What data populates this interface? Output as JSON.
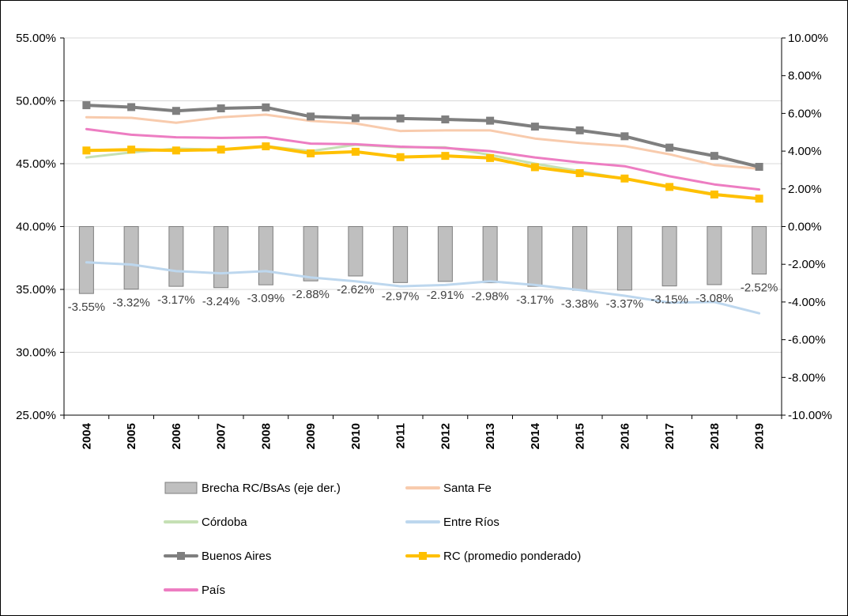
{
  "chart_data": {
    "type": "bar+line",
    "categories": [
      "2004",
      "2005",
      "2006",
      "2007",
      "2008",
      "2009",
      "2010",
      "2011",
      "2012",
      "2013",
      "2014",
      "2015",
      "2016",
      "2017",
      "2018",
      "2019"
    ],
    "left_axis": {
      "range": [
        0.25,
        0.55
      ],
      "ticks": [
        0.25,
        0.3,
        0.35,
        0.4,
        0.45,
        0.5,
        0.55
      ],
      "tick_labels": [
        "25.00%",
        "30.00%",
        "35.00%",
        "40.00%",
        "45.00%",
        "50.00%",
        "55.00%"
      ]
    },
    "right_axis": {
      "range": [
        -0.1,
        0.1
      ],
      "ticks": [
        -0.1,
        -0.08,
        -0.06,
        -0.04,
        -0.02,
        0.0,
        0.02,
        0.04,
        0.06,
        0.08,
        0.1
      ],
      "tick_labels": [
        "-10.00%",
        "-8.00%",
        "-6.00%",
        "-4.00%",
        "-2.00%",
        "0.00%",
        "2.00%",
        "4.00%",
        "6.00%",
        "8.00%",
        "10.00%"
      ]
    },
    "bars": {
      "name": "Brecha RC/BsAs (eje der.)",
      "axis": "right",
      "color": "#bfbfbf",
      "edge_color": "#7f7f7f",
      "values": [
        -0.0355,
        -0.0332,
        -0.0317,
        -0.0324,
        -0.0309,
        -0.0288,
        -0.0262,
        -0.0297,
        -0.0291,
        -0.0298,
        -0.0317,
        -0.0338,
        -0.0337,
        -0.0315,
        -0.0308,
        -0.0252
      ],
      "data_labels": [
        "-3.55%",
        "-3.32%",
        "-3.17%",
        "-3.24%",
        "-3.09%",
        "-2.88%",
        "-2.62%",
        "-2.97%",
        "-2.91%",
        "-2.98%",
        "-3.17%",
        "-3.38%",
        "-3.37%",
        "-3.15%",
        "-3.08%",
        "-2.52%"
      ]
    },
    "series": [
      {
        "name": "Entre Ríos",
        "axis": "left",
        "color": "#bdd7ee",
        "marker": false,
        "width": 3,
        "values": [
          0.3715,
          0.3698,
          0.3645,
          0.3628,
          0.3645,
          0.3595,
          0.3565,
          0.3525,
          0.3535,
          0.3565,
          0.3535,
          0.3495,
          0.345,
          0.3395,
          0.34,
          0.331
        ]
      },
      {
        "name": "Córdoba",
        "axis": "left",
        "color": "#c5e0b4",
        "marker": false,
        "width": 3,
        "values": [
          0.455,
          0.459,
          0.462,
          0.461,
          0.464,
          0.46,
          0.465,
          0.463,
          0.463,
          0.457,
          0.45,
          0.444,
          0.438,
          0.432,
          0.426,
          0.422
        ]
      },
      {
        "name": "Santa Fe",
        "axis": "left",
        "color": "#f8cbad",
        "marker": false,
        "width": 3,
        "values": [
          0.487,
          0.4865,
          0.4825,
          0.487,
          0.489,
          0.484,
          0.482,
          0.476,
          0.4765,
          0.4765,
          0.47,
          0.4665,
          0.464,
          0.4575,
          0.449,
          0.446
        ]
      },
      {
        "name": "País",
        "axis": "left",
        "color": "#ed7dc2",
        "marker": false,
        "width": 3,
        "values": [
          0.4775,
          0.473,
          0.471,
          0.4705,
          0.471,
          0.466,
          0.4655,
          0.4635,
          0.4625,
          0.46,
          0.455,
          0.451,
          0.448,
          0.44,
          0.4335,
          0.4295
        ]
      },
      {
        "name": "Buenos Aires",
        "axis": "left",
        "color": "#7f7f7f",
        "marker": true,
        "width": 4,
        "values": [
          0.4965,
          0.495,
          0.492,
          0.494,
          0.4948,
          0.4875,
          0.4862,
          0.486,
          0.4852,
          0.4842,
          0.4795,
          0.4765,
          0.4718,
          0.4628,
          0.4562,
          0.4475
        ]
      },
      {
        "name": "RC (promedio ponderado)",
        "axis": "left",
        "color": "#ffc000",
        "marker": true,
        "width": 4,
        "values": [
          0.4605,
          0.4612,
          0.4605,
          0.4612,
          0.4638,
          0.4582,
          0.4595,
          0.4552,
          0.4562,
          0.4545,
          0.4472,
          0.4425,
          0.4382,
          0.4315,
          0.4255,
          0.4222
        ]
      }
    ],
    "legend": {
      "position": "bottom",
      "items": [
        {
          "label": "Brecha RC/BsAs (eje der.)",
          "kind": "bar",
          "color": "#bfbfbf",
          "edge": "#7f7f7f"
        },
        {
          "label": "Santa Fe",
          "kind": "line",
          "color": "#f8cbad",
          "marker": false
        },
        {
          "label": "Córdoba",
          "kind": "line",
          "color": "#c5e0b4",
          "marker": false
        },
        {
          "label": "Entre Ríos",
          "kind": "line",
          "color": "#bdd7ee",
          "marker": false
        },
        {
          "label": "Buenos Aires",
          "kind": "line",
          "color": "#7f7f7f",
          "marker": true
        },
        {
          "label": "RC (promedio ponderado)",
          "kind": "line",
          "color": "#ffc000",
          "marker": true
        },
        {
          "label": "País",
          "kind": "line",
          "color": "#ed7dc2",
          "marker": false
        }
      ]
    },
    "gridlines": true,
    "gridline_color": "#d9d9d9"
  }
}
